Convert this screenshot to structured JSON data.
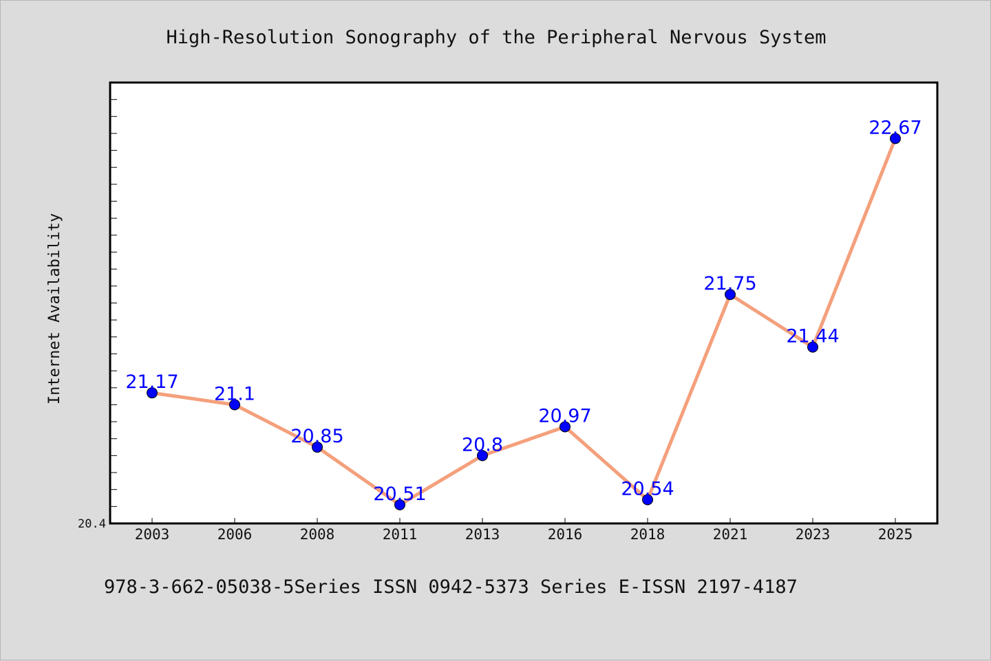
{
  "chart_data": {
    "type": "line",
    "title": "High-Resolution Sonography of the Peripheral Nervous System",
    "xlabel": "",
    "ylabel": "Internet Availability",
    "categories": [
      "2003",
      "2006",
      "2008",
      "2011",
      "2013",
      "2016",
      "2018",
      "2021",
      "2023",
      "2025"
    ],
    "series": [
      {
        "values": [
          21.17,
          21.1,
          20.85,
          20.51,
          20.8,
          20.97,
          20.54,
          21.75,
          21.44,
          22.67
        ]
      }
    ],
    "data_labels": [
      "21.17",
      "21.1",
      "20.85",
      "20.51",
      "20.8",
      "20.97",
      "20.54",
      "21.75",
      "21.44",
      "22.67"
    ],
    "ylim": [
      20.4,
      23.0
    ],
    "y_min_label": "20.4",
    "grid": false,
    "colors": {
      "line": "#f4a07c",
      "marker": "#0000ff",
      "label": "#0000ff",
      "background": "#dcdcdc",
      "plot_background": "#ffffff"
    }
  },
  "footer": {
    "text": "978-3-662-05038-5Series ISSN 0942-5373 Series E-ISSN 2197-4187"
  }
}
